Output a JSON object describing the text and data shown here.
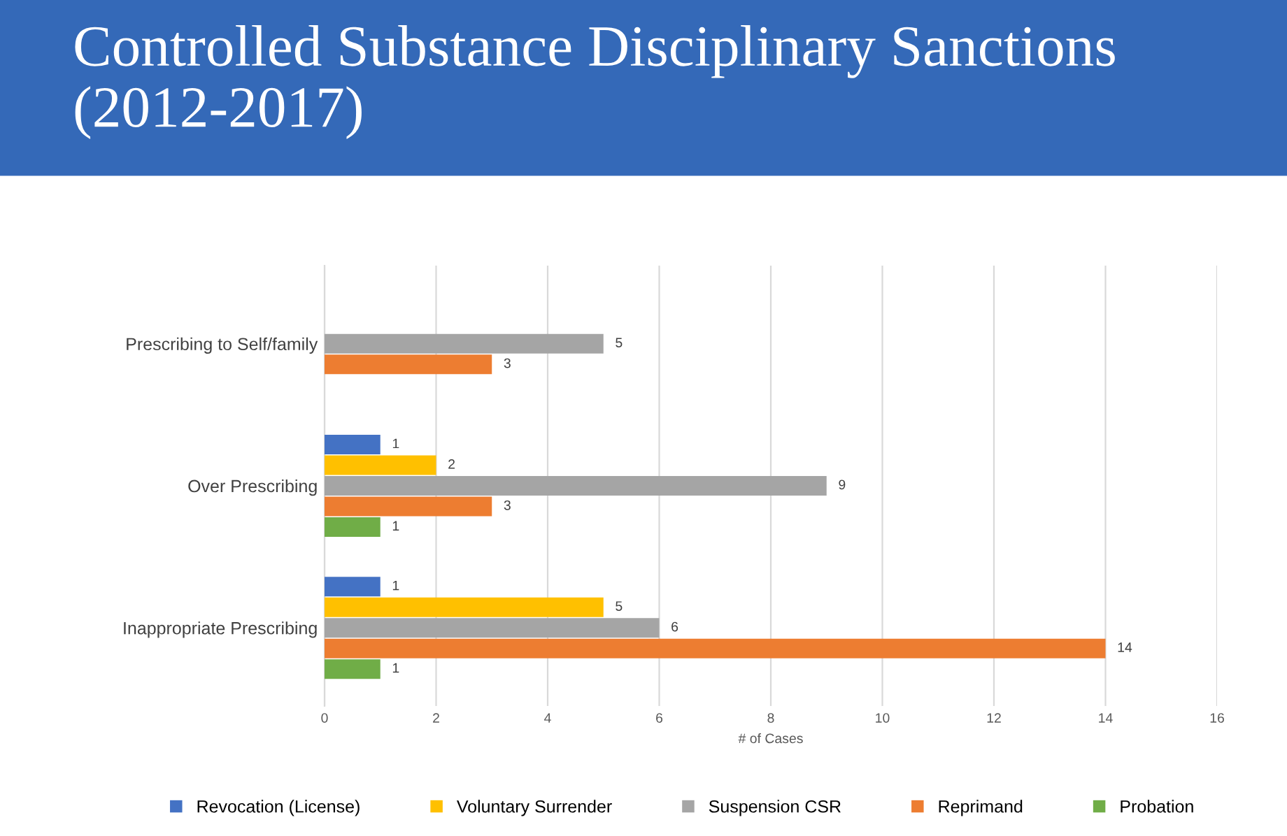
{
  "chart_data": {
    "type": "bar",
    "orientation": "horizontal",
    "title": "Controlled Substance Disciplinary Sanctions (2012-2017)",
    "xlabel": "# of Cases",
    "categories": [
      "Prescribing to Self/family",
      "Over Prescribing",
      "Inappropriate Prescribing"
    ],
    "series": [
      {
        "name": "Revocation (License)",
        "color": "#4472c4",
        "values": [
          null,
          1,
          1
        ]
      },
      {
        "name": "Voluntary Surrender",
        "color": "#ffc000",
        "values": [
          null,
          2,
          5
        ]
      },
      {
        "name": "Suspension CSR",
        "color": "#a5a5a5",
        "values": [
          5,
          9,
          6
        ]
      },
      {
        "name": "Reprimand",
        "color": "#ed7d31",
        "values": [
          3,
          3,
          14
        ]
      },
      {
        "name": "Probation",
        "color": "#70ad47",
        "values": [
          null,
          1,
          1
        ]
      }
    ],
    "xlim": [
      0,
      16
    ],
    "xticks": [
      0,
      2,
      4,
      6,
      8,
      10,
      12,
      14,
      16
    ],
    "grid": "x",
    "legend": "bottom",
    "data_labels": true
  }
}
